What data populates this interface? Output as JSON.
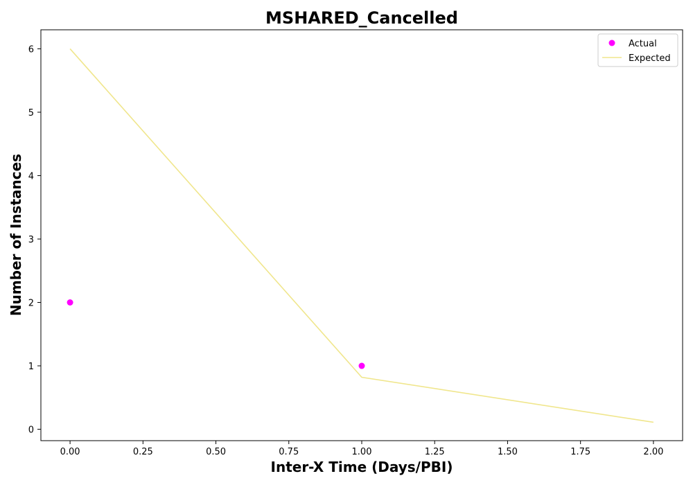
{
  "chart_data": {
    "type": "scatter",
    "title": "MSHARED_Cancelled",
    "xlabel": "Inter-X Time (Days/PBI)",
    "ylabel": "Number of Instances",
    "xlim": [
      -0.1,
      2.1
    ],
    "ylim": [
      -0.18,
      6.3
    ],
    "x_ticks": [
      0.0,
      0.25,
      0.5,
      0.75,
      1.0,
      1.25,
      1.5,
      1.75,
      2.0
    ],
    "x_tick_labels": [
      "0.00",
      "0.25",
      "0.50",
      "0.75",
      "1.00",
      "1.25",
      "1.50",
      "1.75",
      "2.00"
    ],
    "y_ticks": [
      0,
      1,
      2,
      3,
      4,
      5,
      6
    ],
    "y_tick_labels": [
      "0",
      "1",
      "2",
      "3",
      "4",
      "5",
      "6"
    ],
    "grid": false,
    "legend_position": "top-right",
    "series": [
      {
        "name": "Actual",
        "kind": "scatter",
        "color": "#ff00ff",
        "x": [
          0.0,
          1.0
        ],
        "y": [
          2,
          1
        ]
      },
      {
        "name": "Expected",
        "kind": "line",
        "color": "#f0e68c",
        "x": [
          0.0,
          1.0,
          2.0
        ],
        "y": [
          6.0,
          0.82,
          0.11
        ]
      }
    ]
  }
}
